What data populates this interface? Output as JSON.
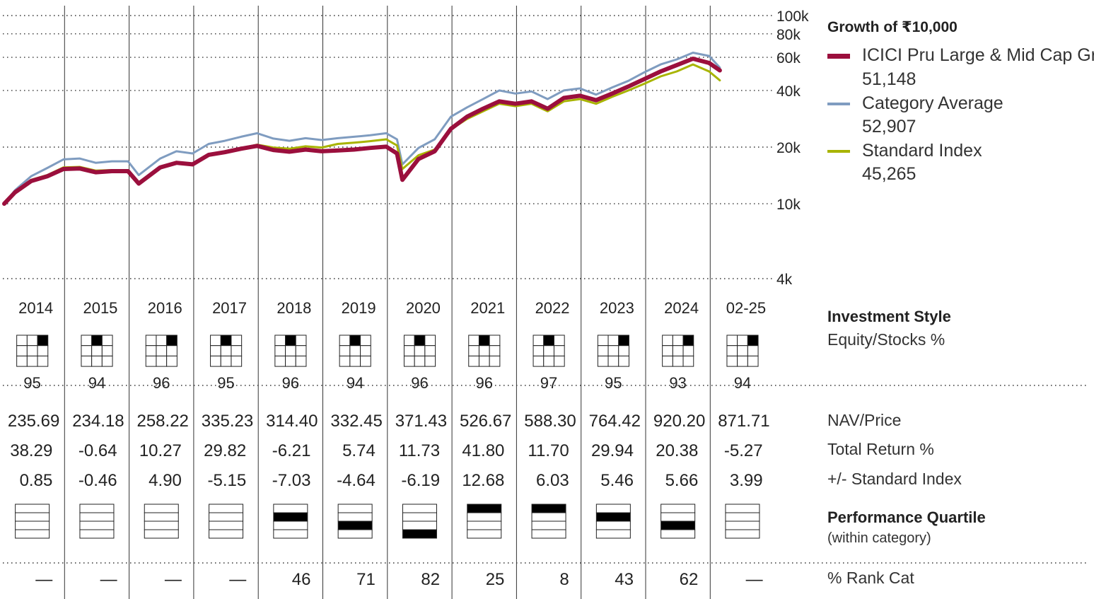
{
  "legend": {
    "title": "Growth of  ₹10,000",
    "items": [
      {
        "name": "ICICI Pru Large & Mid Cap Gr",
        "value": "51,148",
        "color": "#9b0f3d"
      },
      {
        "name": "Category Average",
        "value": "52,907",
        "color": "#7f9cc0"
      },
      {
        "name": "Standard Index",
        "value": "45,265",
        "color": "#a8b400"
      }
    ]
  },
  "labels": {
    "investment_style": "Investment Style",
    "equity_stocks": "Equity/Stocks %",
    "nav_price": "NAV/Price",
    "total_return": "Total Return %",
    "vs_index": "+/- Standard Index",
    "performance_quartile": "Performance Quartile",
    "within_category": "(within category)",
    "rank_cat": "% Rank Cat"
  },
  "chart_data": {
    "type": "line",
    "y_scale": "log",
    "y_ticks": [
      {
        "value": 4000,
        "label": "4k"
      },
      {
        "value": 10000,
        "label": "10k"
      },
      {
        "value": 20000,
        "label": "20k"
      },
      {
        "value": 40000,
        "label": "40k"
      },
      {
        "value": 60000,
        "label": "60k"
      },
      {
        "value": 80000,
        "label": "80k"
      },
      {
        "value": 100000,
        "label": "100k"
      }
    ],
    "years": [
      "2014",
      "2015",
      "2016",
      "2017",
      "2018",
      "2019",
      "2020",
      "2021",
      "2022",
      "2023",
      "2024",
      "02-25"
    ],
    "x": [
      "2014-01",
      "2014-03",
      "2014-06",
      "2014-09",
      "2014-12",
      "2015-03",
      "2015-06",
      "2015-09",
      "2015-12",
      "2016-02",
      "2016-06",
      "2016-09",
      "2016-12",
      "2017-03",
      "2017-06",
      "2017-09",
      "2017-12",
      "2018-03",
      "2018-06",
      "2018-09",
      "2018-12",
      "2019-03",
      "2019-06",
      "2019-09",
      "2019-12",
      "2020-02",
      "2020-03",
      "2020-06",
      "2020-09",
      "2020-12",
      "2021-03",
      "2021-06",
      "2021-09",
      "2021-12",
      "2022-03",
      "2022-06",
      "2022-09",
      "2022-12",
      "2023-03",
      "2023-06",
      "2023-09",
      "2023-12",
      "2024-03",
      "2024-06",
      "2024-09",
      "2024-12",
      "2025-02"
    ],
    "series": [
      {
        "name": "ICICI Pru Large & Mid Cap Gr",
        "values": [
          10000,
          11500,
          13200,
          14000,
          15300,
          15400,
          14700,
          14900,
          14900,
          12800,
          15600,
          16500,
          16200,
          18200,
          18800,
          19600,
          20300,
          19300,
          18900,
          19400,
          19000,
          19200,
          19400,
          19800,
          20100,
          18500,
          13400,
          17300,
          19000,
          25000,
          29000,
          32000,
          35000,
          34000,
          35000,
          32000,
          36500,
          37500,
          35500,
          38500,
          42000,
          46000,
          50500,
          54500,
          59000,
          56000,
          51148
        ]
      },
      {
        "name": "Category Average",
        "values": [
          10000,
          11800,
          14000,
          15500,
          17200,
          17400,
          16500,
          16800,
          16800,
          14200,
          17400,
          19000,
          18500,
          20800,
          21600,
          22700,
          23700,
          22200,
          21600,
          22300,
          21800,
          22300,
          22700,
          23100,
          23700,
          22000,
          16200,
          19800,
          22000,
          29000,
          32500,
          36000,
          40000,
          38500,
          39500,
          36000,
          40000,
          41000,
          38000,
          41500,
          45000,
          50000,
          55000,
          58500,
          63500,
          61000,
          52907
        ]
      },
      {
        "name": "Standard Index",
        "values": [
          10000,
          11600,
          13400,
          14200,
          15600,
          15700,
          15000,
          15100,
          15000,
          13000,
          15700,
          16700,
          16000,
          18000,
          18800,
          19700,
          20600,
          19900,
          19600,
          20200,
          19900,
          20800,
          21100,
          21500,
          22000,
          20400,
          15300,
          18100,
          19400,
          24800,
          28200,
          31000,
          34000,
          33000,
          34000,
          31000,
          35000,
          36000,
          34000,
          37000,
          40000,
          43500,
          47500,
          50500,
          55000,
          50500,
          45265
        ]
      }
    ],
    "equity_pct": [
      "95",
      "94",
      "96",
      "95",
      "96",
      "94",
      "96",
      "96",
      "97",
      "95",
      "93",
      "94"
    ],
    "style_box_cell": [
      [
        0,
        2
      ],
      [
        0,
        1
      ],
      [
        0,
        2
      ],
      [
        0,
        1
      ],
      [
        0,
        1
      ],
      [
        0,
        1
      ],
      [
        0,
        1
      ],
      [
        0,
        1
      ],
      [
        0,
        1
      ],
      [
        0,
        2
      ],
      [
        0,
        2
      ],
      [
        0,
        2
      ]
    ],
    "nav": [
      "235.69",
      "234.18",
      "258.22",
      "335.23",
      "314.40",
      "332.45",
      "371.43",
      "526.67",
      "588.30",
      "764.42",
      "920.20",
      "871.71"
    ],
    "total_return": [
      "38.29",
      "-0.64",
      "10.27",
      "29.82",
      "-6.21",
      "5.74",
      "11.73",
      "41.80",
      "11.70",
      "29.94",
      "20.38",
      "-5.27"
    ],
    "vs_index": [
      "0.85",
      "-0.46",
      "4.90",
      "-5.15",
      "-7.03",
      "-4.64",
      "-6.19",
      "12.68",
      "6.03",
      "5.46",
      "5.66",
      "3.99"
    ],
    "quartile": [
      0,
      0,
      0,
      0,
      2,
      3,
      4,
      1,
      1,
      2,
      3,
      0
    ],
    "rank_cat": [
      "—",
      "—",
      "—",
      "—",
      "46",
      "71",
      "82",
      "25",
      "8",
      "43",
      "62",
      "—"
    ]
  }
}
